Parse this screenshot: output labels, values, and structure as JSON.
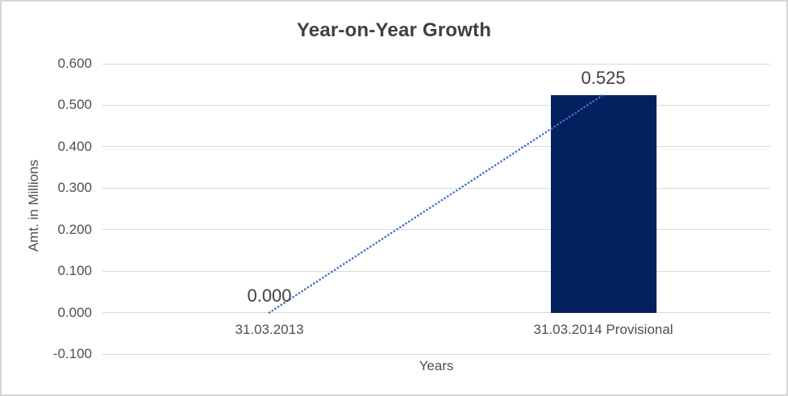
{
  "chart_data": {
    "type": "bar",
    "title": "Year-on-Year Growth",
    "xlabel": "Years",
    "ylabel": "Amt. in Millions",
    "categories": [
      "31.03.2013",
      "31.03.2014 Provisional"
    ],
    "values": [
      0.0,
      0.525
    ],
    "data_labels": [
      "0.000",
      "0.525"
    ],
    "ylim": [
      -0.1,
      0.6
    ],
    "ytick_values": [
      0.6,
      0.5,
      0.4,
      0.3,
      0.2,
      0.1,
      0.0,
      -0.1
    ],
    "ytick_labels": [
      "0.600",
      "0.500",
      "0.400",
      "0.300",
      "0.200",
      "0.100",
      "0.000",
      "-0.100"
    ],
    "grid": true,
    "legend": false,
    "trendline": {
      "style": "dotted",
      "color": "#4472c4",
      "points": [
        [
          0,
          0.0
        ],
        [
          1,
          0.525
        ]
      ]
    },
    "colors": {
      "bar": "#03215e",
      "gridline": "#d9d9d9",
      "title_text": "#404040",
      "axis_text": "#4f4f4f",
      "data_label_text": "#404040",
      "frame_border": "#d6d6d6"
    }
  }
}
